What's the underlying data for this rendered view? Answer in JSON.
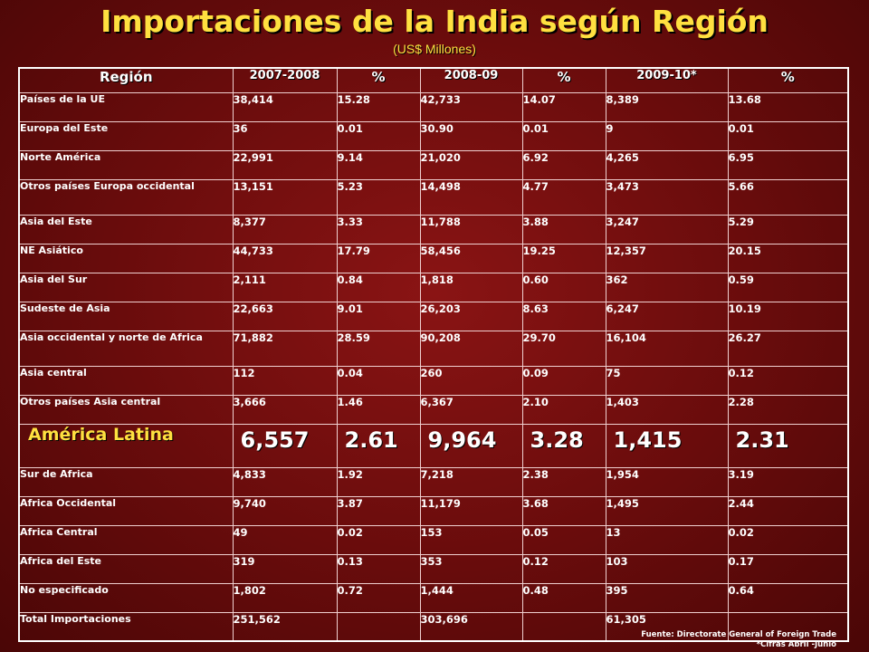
{
  "title": "Importaciones de la India según Región",
  "subtitle": "(US$ Millones)",
  "headers": [
    "Región",
    "2007-2008",
    "%",
    "2008-09",
    "%",
    "2009-10*",
    "%"
  ],
  "rows": [
    {
      "region": "Países de la UE",
      "v1": "38,414",
      "p1": "15.28",
      "v2": "42,733",
      "p2": "14.07",
      "v3": "8,389",
      "p3": "13.68"
    },
    {
      "region": "Europa del Este",
      "v1": "36",
      "p1": "0.01",
      "v2": "30.90",
      "p2": "0.01",
      "v3": "9",
      "p3": "0.01"
    },
    {
      "region": "Norte América",
      "v1": "22,991",
      "p1": "9.14",
      "v2": "21,020",
      "p2": "6.92",
      "v3": "4,265",
      "p3": "6.95"
    },
    {
      "region": "Otros países Europa occidental",
      "v1": "13,151",
      "p1": "5.23",
      "v2": "14,498",
      "p2": "4.77",
      "v3": "3,473",
      "p3": "5.66"
    },
    {
      "region": "Asia del Este",
      "v1": "8,377",
      "p1": "3.33",
      "v2": "11,788",
      "p2": "3.88",
      "v3": "3,247",
      "p3": "5.29"
    },
    {
      "region": "NE Asiático",
      "v1": "44,733",
      "p1": "17.79",
      "v2": "58,456",
      "p2": "19.25",
      "v3": "12,357",
      "p3": "20.15"
    },
    {
      "region": "Asia del Sur",
      "v1": "2,111",
      "p1": "0.84",
      "v2": "1,818",
      "p2": "0.60",
      "v3": "362",
      "p3": "0.59"
    },
    {
      "region": "Sudeste de Asia",
      "v1": "22,663",
      "p1": "9.01",
      "v2": "26,203",
      "p2": "8.63",
      "v3": "6,247",
      "p3": "10.19"
    },
    {
      "region": "Asia occidental y norte de Africa",
      "v1": "71,882",
      "p1": "28.59",
      "v2": "90,208",
      "p2": "29.70",
      "v3": "16,104",
      "p3": "26.27"
    },
    {
      "region": "Asia central",
      "v1": "112",
      "p1": "0.04",
      "v2": "260",
      "p2": "0.09",
      "v3": "75",
      "p3": "0.12"
    },
    {
      "region": "Otros países Asia central",
      "v1": "3,666",
      "p1": "1.46",
      "v2": "6,367",
      "p2": "2.10",
      "v3": "1,403",
      "p3": "2.28"
    },
    {
      "region": "América Latina",
      "v1": "6,557",
      "p1": "2.61",
      "v2": "9,964",
      "p2": "3.28",
      "v3": "1,415",
      "p3": "2.31"
    },
    {
      "region": "Sur de Africa",
      "v1": "4,833",
      "p1": "1.92",
      "v2": "7,218",
      "p2": "2.38",
      "v3": "1,954",
      "p3": "3.19"
    },
    {
      "region": "Africa Occidental",
      "v1": "9,740",
      "p1": "3.87",
      "v2": "11,179",
      "p2": "3.68",
      "v3": "1,495",
      "p3": "2.44"
    },
    {
      "region": "Africa Central",
      "v1": "49",
      "p1": "0.02",
      "v2": "153",
      "p2": "0.05",
      "v3": "13",
      "p3": "0.02"
    },
    {
      "region": "Africa del Este",
      "v1": "319",
      "p1": "0.13",
      "v2": "353",
      "p2": "0.12",
      "v3": "103",
      "p3": "0.17"
    },
    {
      "region": "No especificado",
      "v1": "1,802",
      "p1": "0.72",
      "v2": "1,444",
      "p2": "0.48",
      "v3": "395",
      "p3": "0.64"
    },
    {
      "region": "Total Importaciones",
      "v1": "251,562",
      "p1": "",
      "v2": "303,696",
      "p2": "",
      "v3": "61,305",
      "p3": ""
    }
  ],
  "footer": {
    "source": "Fuente: Directorate General of Foreign Trade",
    "note": "*Cifras  Abril -Junio"
  },
  "colors": {
    "title": "#ffe040",
    "highlight_region": "#ffe040",
    "text": "#ffffff",
    "background": "#6e0d0d",
    "border": "#ffffff"
  }
}
